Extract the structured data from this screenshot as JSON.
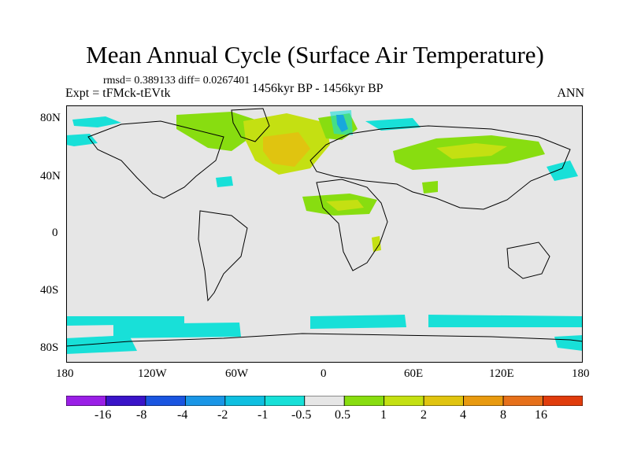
{
  "title": "Mean Annual Cycle (Surface Air Temperature)",
  "stats": "rmsd= 0.389133 diff= 0.0267401",
  "expt": "Expt = tFMck-tEVtk",
  "period": "1456kyr BP - 1456kyr BP",
  "season": "ANN",
  "y_ticks": [
    "80N",
    "40N",
    "0",
    "40S",
    "80S"
  ],
  "x_ticks": [
    "180",
    "120W",
    "60W",
    "0",
    "60E",
    "120E",
    "180"
  ],
  "colorbar": {
    "labels": [
      "-16",
      "-8",
      "-4",
      "-2",
      "-1",
      "-0.5",
      "0.5",
      "1",
      "2",
      "4",
      "8",
      "16"
    ],
    "colors": [
      "#9a1fe6",
      "#3a14c8",
      "#1a55e0",
      "#1a96e6",
      "#0fbfe0",
      "#18e0d8",
      "#e6e6e6",
      "#88dd10",
      "#c4e012",
      "#e0c410",
      "#e89a10",
      "#e6701a",
      "#e03c0c"
    ]
  }
}
